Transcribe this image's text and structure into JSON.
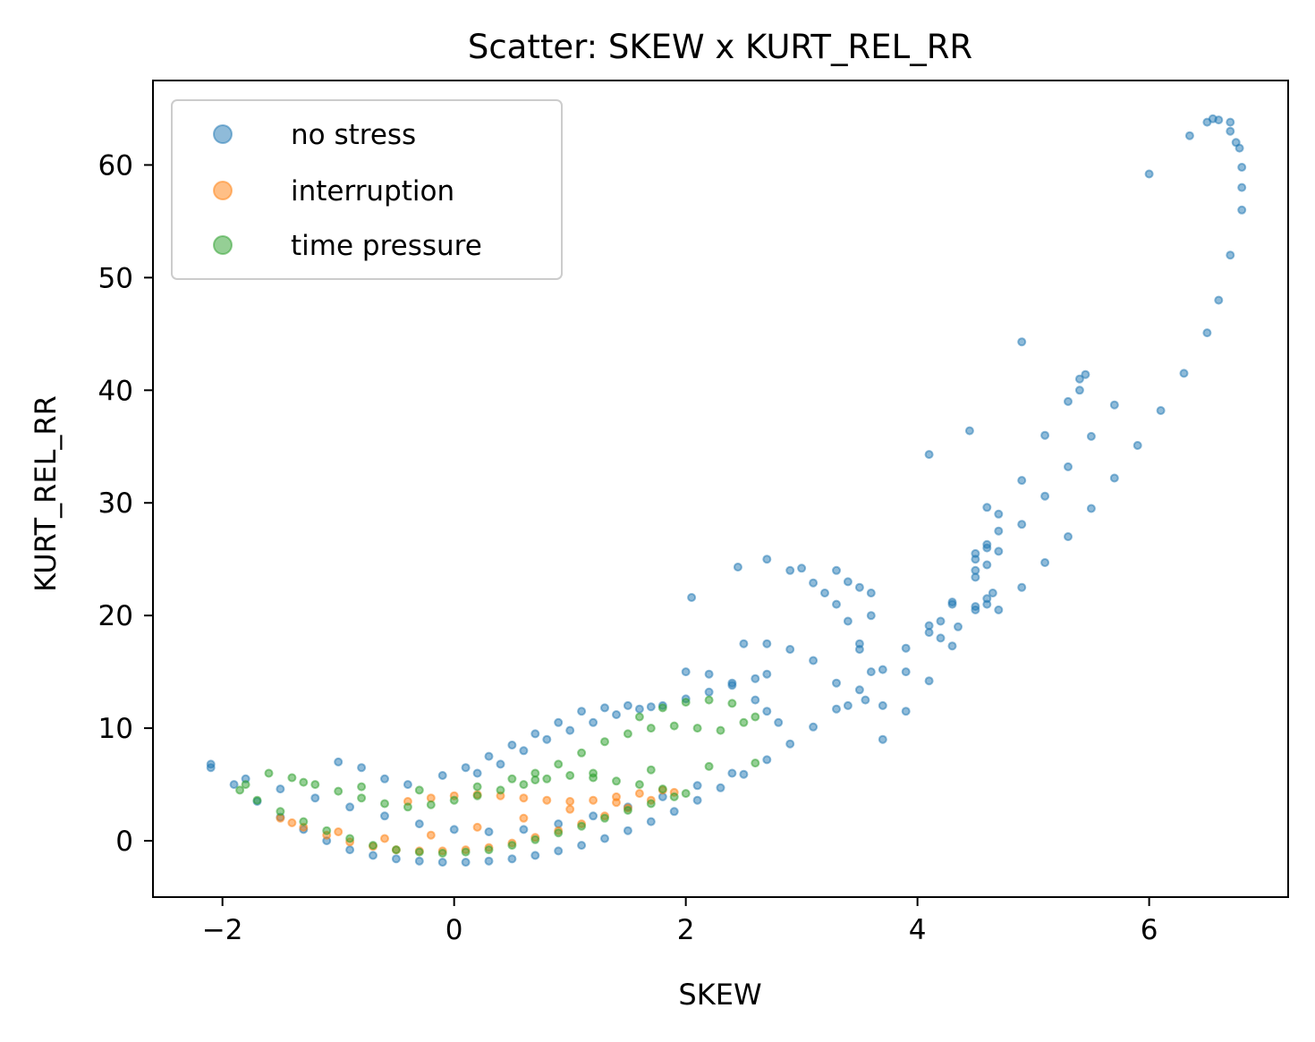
{
  "chart_data": {
    "type": "scatter",
    "title": "Scatter: SKEW x KURT_REL_RR",
    "xlabel": "SKEW",
    "ylabel": "KURT_REL_RR",
    "xlim": [
      -2.6,
      7.2
    ],
    "ylim": [
      -5,
      67.5
    ],
    "xticks": [
      -2,
      0,
      2,
      4,
      6
    ],
    "xtick_labels": [
      "−2",
      "0",
      "2",
      "4",
      "6"
    ],
    "yticks": [
      0,
      10,
      20,
      30,
      40,
      50,
      60
    ],
    "ytick_labels": [
      "0",
      "10",
      "20",
      "30",
      "40",
      "50",
      "60"
    ],
    "grid": false,
    "legend_position": "top-left",
    "series": [
      {
        "name": "no stress",
        "color": "#1f77b4",
        "x": [
          -2.1,
          -1.9,
          -1.7,
          -1.5,
          -1.3,
          -1.1,
          -0.9,
          -0.7,
          -0.5,
          -0.3,
          -0.1,
          0.1,
          0.3,
          0.5,
          0.7,
          0.9,
          1.1,
          1.3,
          1.5,
          1.7,
          1.9,
          2.1,
          2.3,
          2.5,
          2.7,
          2.9,
          3.1,
          3.3,
          3.5,
          3.7,
          3.9,
          4.1,
          4.3,
          4.5,
          4.7,
          4.9,
          5.1,
          5.3,
          5.5,
          5.7,
          4.7,
          4.9,
          5.1,
          5.3,
          5.5,
          5.7,
          5.9,
          6.1,
          6.3,
          6.5,
          6.6,
          6.7,
          6.8,
          6.8,
          6.75,
          6.7,
          6.6,
          6.5,
          6.0,
          6.35,
          6.55,
          6.7,
          6.78,
          6.8,
          3.7,
          3.9,
          4.1,
          4.3,
          4.5,
          4.6,
          4.7,
          4.7,
          4.6,
          4.1,
          4.3,
          4.5,
          4.6,
          4.6,
          4.5,
          4.2,
          4.35,
          4.5,
          4.6,
          4.65,
          4.6,
          3.7,
          3.9,
          4.2,
          4.5,
          4.9,
          5.1,
          5.3,
          5.4,
          5.45,
          5.4,
          2.7,
          2.9,
          3.1,
          3.2,
          3.3,
          3.4,
          3.5,
          3.6,
          3.55,
          3.3,
          3.4,
          3.5,
          3.6,
          3.6,
          3.5,
          2.5,
          2.7,
          2.9,
          3.1,
          3.3,
          3.4,
          2.0,
          2.2,
          2.4,
          2.6,
          2.7,
          2.8,
          4.1,
          4.45,
          4.9,
          2.05,
          2.45,
          3.0,
          0.2,
          0.4,
          0.6,
          0.8,
          1.0,
          1.2,
          1.4,
          1.6,
          1.8,
          2.0,
          2.2,
          2.4,
          2.6,
          2.7,
          -1.0,
          -0.8,
          -0.6,
          -0.4,
          -0.1,
          0.1,
          0.3,
          0.5,
          0.7,
          0.9,
          1.1,
          1.3,
          1.5,
          1.7,
          -2.1,
          -1.8,
          -1.5,
          -1.2,
          -0.9,
          -0.6,
          -0.3,
          0.0,
          0.3,
          0.6,
          0.9,
          1.2,
          1.5,
          1.8,
          2.1,
          2.4
        ],
        "y": [
          6.8,
          5.0,
          3.5,
          2.1,
          1.0,
          0.0,
          -0.8,
          -1.3,
          -1.6,
          -1.8,
          -1.9,
          -1.9,
          -1.8,
          -1.6,
          -1.3,
          -0.9,
          -0.4,
          0.2,
          0.9,
          1.7,
          2.6,
          3.6,
          4.7,
          5.9,
          7.2,
          8.6,
          10.1,
          11.7,
          13.4,
          15.2,
          17.1,
          19.1,
          21.2,
          23.4,
          25.7,
          28.1,
          30.6,
          33.2,
          35.9,
          38.7,
          20.5,
          22.5,
          24.7,
          27.0,
          29.5,
          32.2,
          35.1,
          38.2,
          41.5,
          45.1,
          48.0,
          52.0,
          56.0,
          59.8,
          62.0,
          63.8,
          64.0,
          63.8,
          59.2,
          62.6,
          64.1,
          63.0,
          61.5,
          58.0,
          9.0,
          11.5,
          14.2,
          17.3,
          20.8,
          24.5,
          27.5,
          29.0,
          29.6,
          18.5,
          21.0,
          24.0,
          26.0,
          26.3,
          25.5,
          18.0,
          19.0,
          20.5,
          21.5,
          22.0,
          21.0,
          12.0,
          15.0,
          19.5,
          25.0,
          32.0,
          36.0,
          39.0,
          41.0,
          41.4,
          40.0,
          25.0,
          24.0,
          22.9,
          22.0,
          21.0,
          19.5,
          17.5,
          15.0,
          12.5,
          24.0,
          23.0,
          22.5,
          22.0,
          20.0,
          17.0,
          17.5,
          17.5,
          17.0,
          16.0,
          14.0,
          12.0,
          15.0,
          14.8,
          14.0,
          12.5,
          11.5,
          10.5,
          34.3,
          36.4,
          44.3,
          21.6,
          24.3,
          24.2,
          6.0,
          6.8,
          8.0,
          9.0,
          9.8,
          10.5,
          11.2,
          11.7,
          12.0,
          12.6,
          13.2,
          13.8,
          14.4,
          14.8,
          7.0,
          6.5,
          5.5,
          5.0,
          5.8,
          6.5,
          7.5,
          8.5,
          9.5,
          10.5,
          11.5,
          11.8,
          12.0,
          11.9,
          6.5,
          5.5,
          4.6,
          3.8,
          3.0,
          2.2,
          1.5,
          1.0,
          0.8,
          1.0,
          1.5,
          2.2,
          3.0,
          3.9,
          4.9,
          6.0
        ]
      },
      {
        "name": "interruption",
        "color": "#ff7f0e",
        "x": [
          -1.5,
          -1.3,
          -1.1,
          -0.9,
          -0.7,
          -0.5,
          -0.3,
          -0.1,
          0.1,
          0.3,
          0.5,
          0.7,
          0.9,
          1.1,
          1.3,
          1.5,
          1.7,
          1.9,
          -0.4,
          -0.2,
          0.0,
          0.2,
          0.4,
          0.6,
          0.8,
          1.0,
          1.2,
          1.4,
          1.6,
          1.8,
          -1.4,
          -1.0,
          -0.6,
          -0.2,
          0.2,
          0.6,
          1.0,
          1.4
        ],
        "y": [
          2.0,
          1.2,
          0.5,
          -0.1,
          -0.5,
          -0.8,
          -0.9,
          -0.9,
          -0.8,
          -0.6,
          -0.2,
          0.3,
          0.9,
          1.5,
          2.2,
          2.9,
          3.6,
          4.3,
          3.5,
          3.8,
          4.0,
          4.1,
          4.0,
          3.8,
          3.6,
          3.5,
          3.6,
          3.9,
          4.2,
          4.5,
          1.6,
          0.8,
          0.2,
          0.5,
          1.2,
          2.0,
          2.8,
          3.4
        ]
      },
      {
        "name": "time pressure",
        "color": "#2ca02c",
        "x": [
          -1.85,
          -1.7,
          -1.5,
          -1.3,
          -1.1,
          -0.9,
          -0.7,
          -0.5,
          -0.3,
          -0.1,
          0.1,
          0.3,
          0.5,
          0.7,
          0.9,
          1.1,
          1.3,
          1.5,
          1.7,
          1.9,
          -1.8,
          -1.6,
          -1.4,
          -1.2,
          -1.0,
          -0.8,
          -0.6,
          -0.4,
          -0.2,
          0.0,
          0.2,
          0.4,
          0.6,
          0.8,
          1.0,
          1.2,
          1.4,
          1.6,
          1.8,
          2.0,
          0.5,
          0.7,
          0.9,
          1.1,
          1.3,
          1.5,
          1.7,
          1.9,
          2.1,
          2.3,
          2.5,
          1.6,
          1.8,
          2.0,
          2.2,
          2.4,
          2.6,
          -1.3,
          -0.8,
          -0.3,
          0.2,
          0.7,
          1.2,
          1.7,
          2.2,
          2.6
        ],
        "y": [
          4.5,
          3.6,
          2.6,
          1.7,
          0.9,
          0.2,
          -0.4,
          -0.8,
          -1.0,
          -1.1,
          -1.0,
          -0.8,
          -0.4,
          0.1,
          0.7,
          1.3,
          2.0,
          2.7,
          3.3,
          3.9,
          5.0,
          6.0,
          5.6,
          5.0,
          4.4,
          3.8,
          3.3,
          3.0,
          3.2,
          3.6,
          4.0,
          4.5,
          5.0,
          5.5,
          5.8,
          5.6,
          5.3,
          5.0,
          4.6,
          4.2,
          5.5,
          6.0,
          6.8,
          7.8,
          8.8,
          9.5,
          10.0,
          10.2,
          10.0,
          9.8,
          10.5,
          11.0,
          11.8,
          12.3,
          12.5,
          12.2,
          11.0,
          5.2,
          4.8,
          4.5,
          4.8,
          5.4,
          6.0,
          6.3,
          6.6,
          6.9
        ]
      }
    ]
  }
}
